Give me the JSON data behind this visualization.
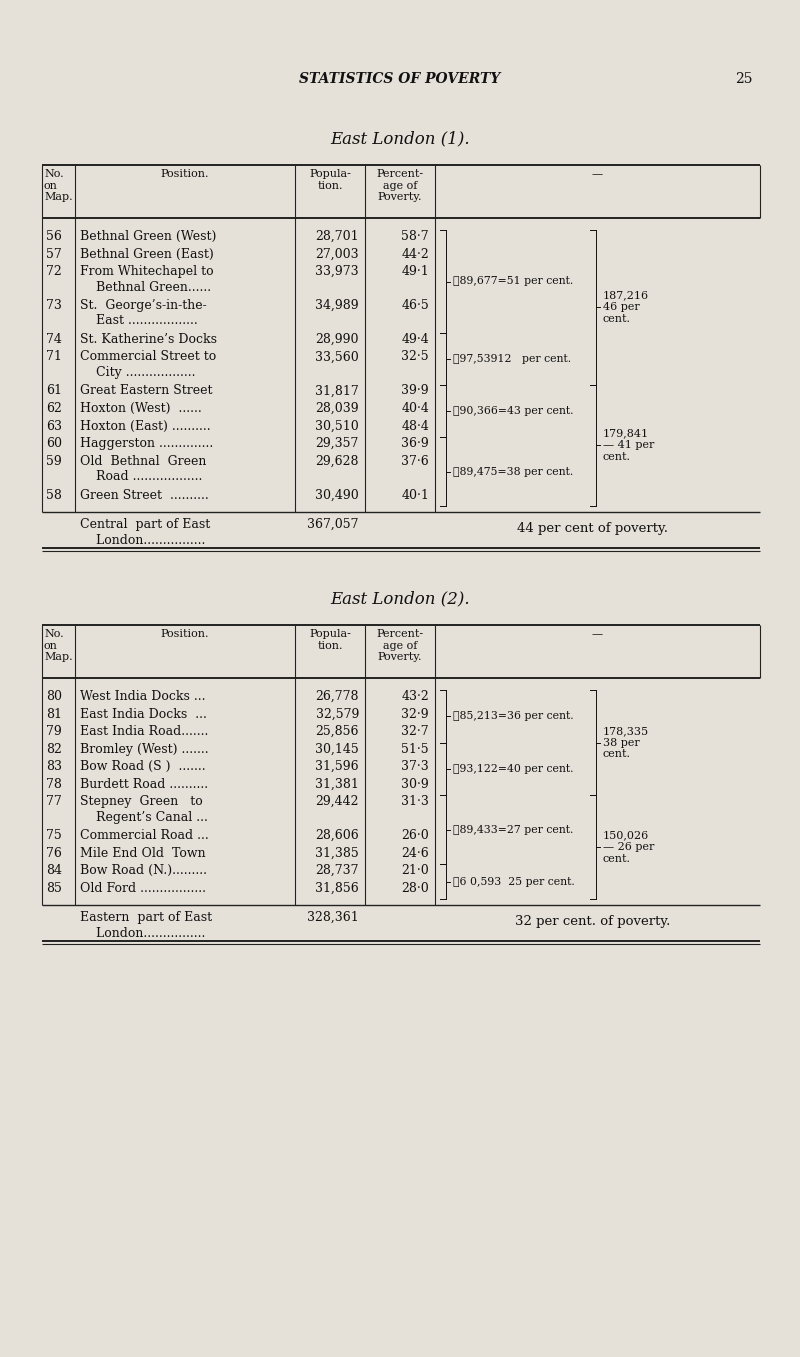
{
  "page_header": "STATISTICS OF POVERTY",
  "page_number": "25",
  "bg_color": "#e5e1d8",
  "text_color": "#111111",
  "table1_title": "East London (1).",
  "table1_rows": [
    {
      "no": "56",
      "pos1": "Bethnal Green (West)",
      "pos2": "",
      "pop": "28,701",
      "pct": "58·7"
    },
    {
      "no": "57",
      "pos1": "Bethnal Green (East)",
      "pos2": "",
      "pop": "27,003",
      "pct": "44·2"
    },
    {
      "no": "72",
      "pos1": "From Whitechapel to",
      "pos2": "    Bethnal Green......",
      "pop": "33,973",
      "pct": "49·1"
    },
    {
      "no": "73",
      "pos1": "St.  George’s-in-the-",
      "pos2": "    East ..................",
      "pop": "34,989",
      "pct": "46·5"
    },
    {
      "no": "74",
      "pos1": "St. Katherine’s Docks",
      "pos2": "",
      "pop": "28,990",
      "pct": "49·4"
    },
    {
      "no": "71",
      "pos1": "Commercial Street to",
      "pos2": "    City ..................",
      "pop": "33,560",
      "pct": "32·5"
    },
    {
      "no": "61",
      "pos1": "Great Eastern Street",
      "pos2": "",
      "pop": "31,817",
      "pct": "39·9"
    },
    {
      "no": "62",
      "pos1": "Hoxton (West)  ......",
      "pos2": "",
      "pop": "28,039",
      "pct": "40·4"
    },
    {
      "no": "63",
      "pos1": "Hoxton (East) ..........",
      "pos2": "",
      "pop": "30,510",
      "pct": "48·4"
    },
    {
      "no": "60",
      "pos1": "Haggerston ..............",
      "pos2": "",
      "pop": "29,357",
      "pct": "36·9"
    },
    {
      "no": "59",
      "pos1": "Old  Bethnal  Green",
      "pos2": "    Road ..................",
      "pop": "29,628",
      "pct": "37·6"
    },
    {
      "no": "58",
      "pos1": "Green Street  ..........",
      "pos2": "",
      "pop": "30,490",
      "pct": "40·1"
    }
  ],
  "table1_footer_pos1": "Central  part of East",
  "table1_footer_pos2": "    London................",
  "table1_footer_pop": "367,057",
  "table1_footer_note": "44 per cent of poverty.",
  "table2_title": "East London (2).",
  "table2_rows": [
    {
      "no": "80",
      "pos1": "West India Docks ...",
      "pos2": "",
      "pop": "26,778",
      "pct": "43·2"
    },
    {
      "no": "81",
      "pos1": "East India Docks  ...",
      "pos2": "",
      "pop": "32,579",
      "pct": "32·9"
    },
    {
      "no": "79",
      "pos1": "East India Road.......",
      "pos2": "",
      "pop": "25,856",
      "pct": "32·7"
    },
    {
      "no": "82",
      "pos1": "Bromley (West) .......",
      "pos2": "",
      "pop": "30,145",
      "pct": "51·5"
    },
    {
      "no": "83",
      "pos1": "Bow Road (S )  .......",
      "pos2": "",
      "pop": "31,596",
      "pct": "37·3"
    },
    {
      "no": "78",
      "pos1": "Burdett Road ..........",
      "pos2": "",
      "pop": "31,381",
      "pct": "30·9"
    },
    {
      "no": "77",
      "pos1": "Stepney  Green   to",
      "pos2": "    Regent’s Canal ...",
      "pop": "29,442",
      "pct": "31·3"
    },
    {
      "no": "75",
      "pos1": "Commercial Road ...",
      "pos2": "",
      "pop": "28,606",
      "pct": "26·0"
    },
    {
      "no": "76",
      "pos1": "Mile End Old  Town",
      "pos2": "",
      "pop": "31,385",
      "pct": "24·6"
    },
    {
      "no": "84",
      "pos1": "Bow Road (N.).........",
      "pos2": "",
      "pop": "28,737",
      "pct": "21·0"
    },
    {
      "no": "85",
      "pos1": "Old Ford .................",
      "pos2": "",
      "pop": "31,856",
      "pct": "28·0"
    }
  ],
  "table2_footer_pos1": "Eastern  part of East",
  "table2_footer_pos2": "    London................",
  "table2_footer_pop": "328,361",
  "table2_footer_note": "32 per cent. of poverty."
}
